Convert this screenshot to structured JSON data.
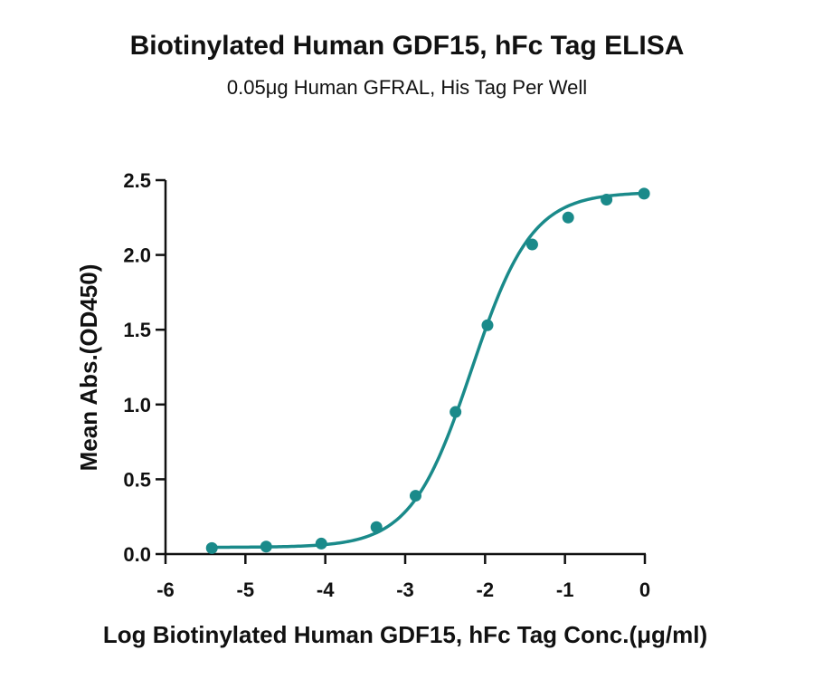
{
  "chart_data": {
    "type": "scatter",
    "title": "Biotinylated Human GDF15, hFc Tag ELISA",
    "subtitle": "0.05μg Human GFRAL, His Tag Per Well",
    "xlabel": "Log Biotinylated Human GDF15, hFc Tag Conc.(μg/ml)",
    "ylabel": "Mean Abs.(OD450)",
    "xlim": [
      -6,
      0
    ],
    "ylim": [
      0,
      2.5
    ],
    "xticks": [
      -6,
      -5,
      -4,
      -3,
      -2,
      -1,
      0
    ],
    "yticks": [
      0.0,
      0.5,
      1.0,
      1.5,
      2.0,
      2.5
    ],
    "xtick_labels": [
      "-6",
      "-5",
      "-4",
      "-3",
      "-2",
      "-1",
      "0"
    ],
    "ytick_labels": [
      "0.0",
      "0.5",
      "1.0",
      "1.5",
      "2.0",
      "2.5"
    ],
    "grid": false,
    "color": "#1a8a8a",
    "series": [
      {
        "x": [
          -5.42,
          -4.74,
          -4.05,
          -3.36,
          -2.87,
          -2.37,
          -1.97,
          -1.41,
          -0.96,
          -0.48,
          -0.01
        ],
        "y": [
          0.04,
          0.05,
          0.07,
          0.18,
          0.39,
          0.95,
          1.53,
          2.07,
          2.25,
          2.37,
          2.41
        ],
        "fit": {
          "model": "4PL",
          "bottom": 0.045,
          "top": 2.42,
          "logEC50": -2.17,
          "hill": 1.15
        }
      }
    ]
  }
}
